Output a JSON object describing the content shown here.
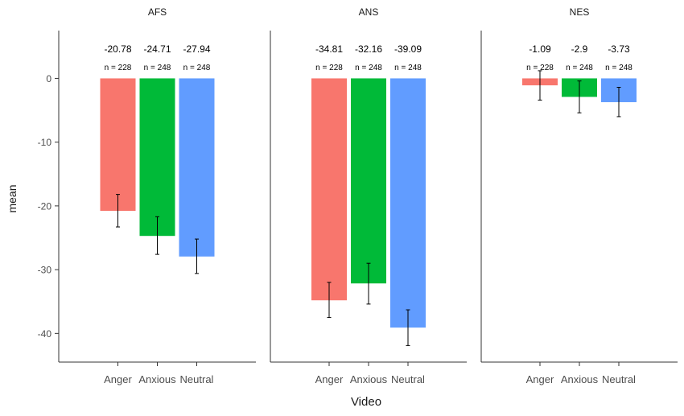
{
  "chart_data": {
    "type": "bar",
    "xlabel": "Video",
    "ylabel": "mean",
    "ylim": [
      -44.5,
      7.5
    ],
    "yticks": [
      0,
      -10,
      -20,
      -30,
      -40
    ],
    "categories": [
      "Anger",
      "Anxious",
      "Neutral"
    ],
    "colors": {
      "Anger": "#F8766D",
      "Anxious": "#00BA38",
      "Neutral": "#619CFF"
    },
    "grid": false,
    "legend": "none",
    "panels": [
      {
        "title": "AFS",
        "values": [
          -20.78,
          -24.71,
          -27.94
        ],
        "value_labels": [
          "-20.78",
          "-24.71",
          "-27.94"
        ],
        "n_labels": [
          "n = 228",
          "n = 248",
          "n = 248"
        ],
        "error_low": [
          -23.3,
          -27.6,
          -30.6
        ],
        "error_high": [
          -18.2,
          -21.7,
          -25.2
        ]
      },
      {
        "title": "ANS",
        "values": [
          -34.81,
          -32.16,
          -39.09
        ],
        "value_labels": [
          "-34.81",
          "-32.16",
          "-39.09"
        ],
        "n_labels": [
          "n = 228",
          "n = 248",
          "n = 248"
        ],
        "error_low": [
          -37.5,
          -35.4,
          -41.9
        ],
        "error_high": [
          -32.0,
          -29.0,
          -36.3
        ]
      },
      {
        "title": "NES",
        "values": [
          -1.09,
          -2.9,
          -3.73
        ],
        "value_labels": [
          "-1.09",
          "-2.9",
          "-3.73"
        ],
        "n_labels": [
          "n = 228",
          "n = 248",
          "n = 248"
        ],
        "error_low": [
          -3.4,
          -5.4,
          -6.0
        ],
        "error_high": [
          1.2,
          -0.4,
          -1.4
        ]
      }
    ]
  }
}
